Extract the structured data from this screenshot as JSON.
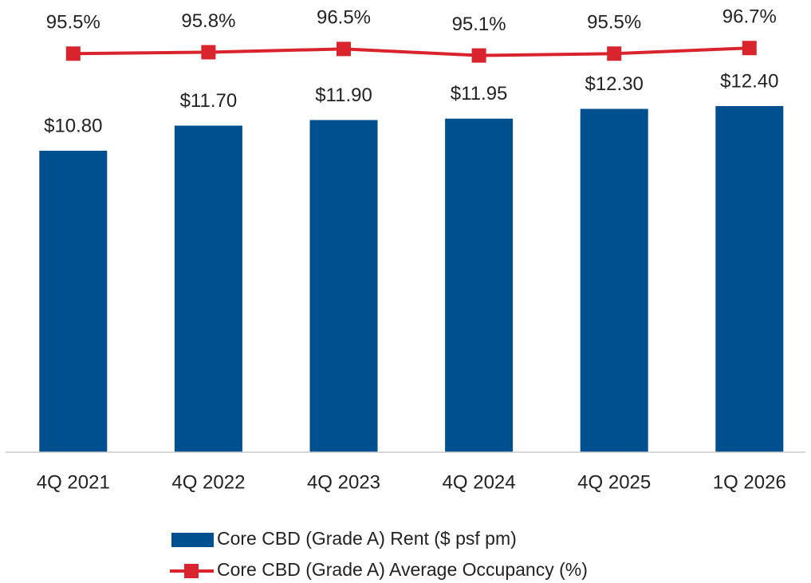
{
  "chart_data": {
    "type": "bar",
    "categories": [
      "4Q 2021",
      "4Q 2022",
      "4Q 2023",
      "4Q 2024",
      "4Q 2025",
      "1Q 2026"
    ],
    "series": [
      {
        "name": "Core CBD (Grade A) Rent ($ psf pm)",
        "type": "bar",
        "color": "#00508f",
        "values": [
          10.8,
          11.7,
          11.9,
          11.95,
          12.3,
          12.4
        ],
        "value_labels": [
          "$10.80",
          "$11.70",
          "$11.90",
          "$11.95",
          "$12.30",
          "$12.40"
        ]
      },
      {
        "name": "Core CBD (Grade A) Average Occupancy (%)",
        "type": "line",
        "axis": "y2",
        "color": "#d9232d",
        "values": [
          95.5,
          95.8,
          96.5,
          95.1,
          95.5,
          96.7
        ],
        "value_labels": [
          "95.5%",
          "95.8%",
          "96.5%",
          "95.1%",
          "95.5%",
          "96.7%"
        ]
      }
    ],
    "ylim": [
      0,
      16.2
    ],
    "y2lim": [
      10,
      107
    ],
    "legend": "bottom"
  }
}
